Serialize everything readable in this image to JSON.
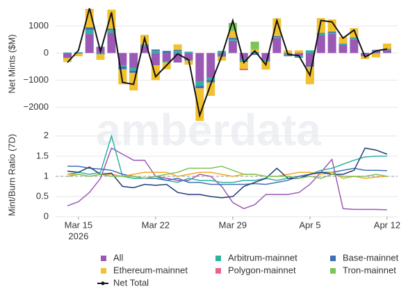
{
  "watermark": "amberdata",
  "chart_data": [
    {
      "type": "stacked-bar",
      "ylabel": "Net Mints ($M)",
      "x": [
        "2026-03-14",
        "2026-03-15",
        "2026-03-16",
        "2026-03-17",
        "2026-03-18",
        "2026-03-19",
        "2026-03-20",
        "2026-03-21",
        "2026-03-22",
        "2026-03-23",
        "2026-03-24",
        "2026-03-25",
        "2026-03-26",
        "2026-03-27",
        "2026-03-28",
        "2026-03-29",
        "2026-03-30",
        "2026-03-31",
        "2026-04-01",
        "2026-04-02",
        "2026-04-03",
        "2026-04-04",
        "2026-04-05",
        "2026-04-06",
        "2026-04-07",
        "2026-04-08",
        "2026-04-09",
        "2026-04-10",
        "2026-04-11",
        "2026-04-12"
      ],
      "ylim": [
        -2500,
        1700
      ],
      "yticks": [
        {
          "value": -2000,
          "label": "−2000"
        },
        {
          "value": -1000,
          "label": "−1000"
        },
        0,
        1000
      ],
      "grid": true,
      "series": [
        {
          "name": "All",
          "color": "#9b59b6",
          "values": [
            -150,
            0,
            700,
            200,
            750,
            -450,
            -550,
            250,
            -450,
            -300,
            -350,
            -250,
            -1050,
            -900,
            -100,
            450,
            -250,
            -50,
            -250,
            550,
            -50,
            -100,
            -450,
            650,
            700,
            300,
            500,
            -100,
            100,
            100
          ]
        },
        {
          "name": "Arbitrum-mainnet",
          "color": "#2bb3a0",
          "values": [
            20,
            30,
            150,
            -50,
            100,
            -50,
            -100,
            50,
            80,
            -50,
            80,
            50,
            -150,
            -100,
            80,
            60,
            -50,
            40,
            -30,
            50,
            -50,
            -40,
            100,
            60,
            50,
            30,
            40,
            10,
            20,
            30
          ]
        },
        {
          "name": "Base-mainnet",
          "color": "#3f6fb5",
          "values": [
            -30,
            -20,
            100,
            30,
            50,
            -100,
            -80,
            20,
            50,
            80,
            40,
            -30,
            -100,
            -80,
            -30,
            50,
            -30,
            -20,
            -30,
            30,
            -20,
            -30,
            -50,
            30,
            40,
            20,
            30,
            -20,
            -10,
            20
          ]
        },
        {
          "name": "Ethereum-mainnet",
          "color": "#f2c12e",
          "values": [
            -150,
            -100,
            650,
            -200,
            700,
            -550,
            -650,
            350,
            -550,
            -250,
            200,
            -150,
            -1200,
            -500,
            -150,
            250,
            -250,
            100,
            -300,
            650,
            100,
            100,
            -650,
            550,
            450,
            250,
            350,
            -100,
            -150,
            200
          ]
        },
        {
          "name": "Polygon-mainnet",
          "color": "#e8628a",
          "values": [
            0,
            0,
            20,
            0,
            0,
            0,
            0,
            0,
            0,
            0,
            0,
            0,
            0,
            0,
            0,
            0,
            -50,
            0,
            0,
            0,
            0,
            0,
            0,
            0,
            0,
            0,
            0,
            0,
            0,
            0
          ]
        },
        {
          "name": "Tron-mainnet",
          "color": "#7cc35a",
          "values": [
            0,
            0,
            0,
            0,
            0,
            0,
            0,
            0,
            0,
            0,
            0,
            0,
            0,
            0,
            0,
            300,
            0,
            280,
            0,
            0,
            0,
            0,
            0,
            0,
            0,
            0,
            0,
            0,
            0,
            0
          ]
        }
      ],
      "line": {
        "name": "Net Total",
        "color": "#111111",
        "values": [
          -350,
          100,
          1650,
          50,
          1500,
          -1080,
          -1150,
          550,
          -870,
          -450,
          -30,
          -250,
          -2300,
          -1150,
          -100,
          1200,
          -350,
          80,
          -430,
          1200,
          -50,
          -100,
          -820,
          1200,
          1150,
          550,
          850,
          -150,
          80,
          150
        ]
      }
    },
    {
      "type": "line",
      "ylabel": "Mint/Burn Ratio (7D)",
      "x": [
        "2026-03-14",
        "2026-03-15",
        "2026-03-16",
        "2026-03-17",
        "2026-03-18",
        "2026-03-19",
        "2026-03-20",
        "2026-03-21",
        "2026-03-22",
        "2026-03-23",
        "2026-03-24",
        "2026-03-25",
        "2026-03-26",
        "2026-03-27",
        "2026-03-28",
        "2026-03-29",
        "2026-03-30",
        "2026-03-31",
        "2026-04-01",
        "2026-04-02",
        "2026-04-03",
        "2026-04-04",
        "2026-04-05",
        "2026-04-06",
        "2026-04-07",
        "2026-04-08",
        "2026-04-09",
        "2026-04-10",
        "2026-04-11",
        "2026-04-12"
      ],
      "xticks": [
        {
          "value": "2026-03-15",
          "label": "Mar 15",
          "sublabel": "2026"
        },
        {
          "value": "2026-03-22",
          "label": "Mar 22"
        },
        {
          "value": "2026-03-29",
          "label": "Mar 29"
        },
        {
          "value": "2026-04-05",
          "label": "Apr 5"
        },
        {
          "value": "2026-04-12",
          "label": "Apr 12"
        }
      ],
      "ylim": [
        0,
        2.1
      ],
      "yticks": [
        0,
        0.5,
        1,
        1.5,
        2
      ],
      "grid": true,
      "refline": 1,
      "series": [
        {
          "name": "All",
          "color": "#9b59b6",
          "values": [
            0.27,
            0.37,
            0.6,
            0.95,
            1.7,
            1.55,
            1.4,
            1.4,
            1.0,
            0.95,
            0.9,
            0.9,
            1.05,
            1.0,
            0.75,
            0.35,
            0.2,
            0.3,
            0.55,
            0.55,
            0.55,
            0.6,
            0.8,
            1.1,
            1.42,
            0.2,
            0.18,
            0.18,
            0.18,
            0.17
          ]
        },
        {
          "name": "Arbitrum-mainnet",
          "color": "#2bb3a0",
          "values": [
            1.05,
            1.1,
            1.05,
            1.1,
            2.0,
            1.0,
            0.95,
            0.95,
            1.0,
            0.9,
            0.85,
            0.95,
            0.9,
            0.9,
            0.85,
            0.85,
            0.9,
            0.9,
            0.95,
            0.9,
            0.95,
            1.0,
            1.05,
            1.15,
            1.2,
            1.3,
            1.4,
            1.48,
            1.5,
            1.5
          ]
        },
        {
          "name": "Base-mainnet",
          "color": "#3f6fb5",
          "values": [
            1.25,
            1.25,
            1.2,
            1.18,
            1.15,
            1.05,
            1.0,
            0.95,
            0.95,
            0.9,
            0.95,
            0.85,
            0.85,
            0.8,
            0.8,
            0.8,
            0.8,
            0.82,
            0.8,
            0.85,
            0.9,
            1.0,
            1.05,
            1.1,
            1.1,
            1.15,
            1.2,
            1.15,
            1.15,
            1.14
          ]
        },
        {
          "name": "Ethereum-mainnet",
          "color": "#f5a623",
          "values": [
            1.05,
            1.05,
            1.0,
            1.05,
            1.05,
            1.0,
            1.05,
            1.1,
            1.1,
            1.1,
            1.0,
            1.05,
            1.1,
            1.1,
            1.05,
            1.0,
            1.05,
            1.05,
            1.0,
            1.0,
            1.05,
            1.1,
            1.1,
            1.05,
            1.1,
            0.95,
            1.0,
            0.95,
            0.98,
            1.0
          ]
        },
        {
          "name": "Polygon-mainnet",
          "color": "#1f3a7a",
          "values": [
            1.13,
            1.1,
            1.23,
            1.05,
            1.08,
            0.75,
            0.72,
            0.8,
            0.78,
            0.8,
            0.6,
            0.55,
            0.55,
            0.5,
            0.47,
            0.5,
            0.75,
            0.85,
            0.95,
            1.2,
            0.95,
            0.95,
            1.05,
            1.1,
            1.05,
            1.05,
            1.15,
            1.7,
            1.65,
            1.55
          ]
        },
        {
          "name": "Tron-mainnet",
          "color": "#7cc35a",
          "values": [
            1.0,
            1.05,
            1.0,
            1.05,
            1.0,
            1.0,
            1.0,
            0.95,
            1.0,
            1.05,
            1.1,
            1.2,
            1.2,
            1.2,
            1.25,
            1.15,
            1.05,
            1.05,
            1.0,
            1.0,
            1.0,
            0.95,
            1.0,
            0.95,
            1.05,
            1.0,
            1.0,
            1.0,
            1.05,
            1.0
          ]
        }
      ]
    }
  ]
}
